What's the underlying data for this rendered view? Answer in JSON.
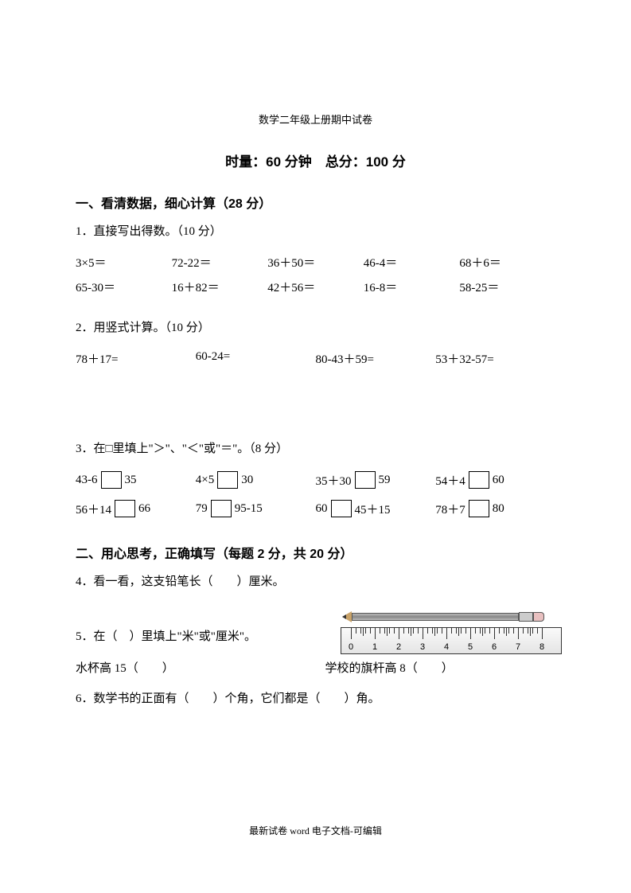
{
  "header": "数学二年级上册期中试卷",
  "timeScore": "时量：60 分钟　总分：100 分",
  "section1": {
    "title": "一、看清数据，细心计算（28 分）",
    "q1": {
      "label": "1．直接写出得数。（10 分）",
      "row1": [
        "3×5＝",
        "72-22＝",
        "36＋50＝",
        "46-4＝",
        "68＋6＝"
      ],
      "row2": [
        "65-30＝",
        "16＋82＝",
        "42＋56＝",
        "16-8＝",
        "58-25＝"
      ]
    },
    "q2": {
      "label": "2．用竖式计算。（10 分）",
      "row1": [
        "78＋17=",
        "60-24=",
        "80-43＋59=",
        "53＋32-57="
      ]
    },
    "q3": {
      "label": "3．在□里填上\"＞\"、\"＜\"或\"＝\"。（8 分）",
      "row1": [
        {
          "a": "43-6",
          "b": "35"
        },
        {
          "a": "4×5",
          "b": "30"
        },
        {
          "a": "35＋30",
          "b": "59"
        },
        {
          "a": "54＋4",
          "b": "60"
        }
      ],
      "row2": [
        {
          "a": "56＋14",
          "b": "66"
        },
        {
          "a": "79",
          "b": "95-15"
        },
        {
          "a": "60",
          "b": "45＋15"
        },
        {
          "a": "78＋7",
          "b": "80"
        }
      ]
    }
  },
  "section2": {
    "title": "二、用心思考，正确填写（每题 2 分，共 20 分）",
    "q4": "4．看一看，这支铅笔长（　　）厘米。",
    "q5": "5．在（　）里填上\"米\"或\"厘米\"。",
    "q5a": "水杯高 15（　　）",
    "q5b": "学校的旗杆高 8（　　）",
    "q6": "6．数学书的正面有（　　）个角，它们都是（　　）角。"
  },
  "ruler": {
    "marks": [
      "0",
      "1",
      "2",
      "3",
      "4",
      "5",
      "6",
      "7",
      "8"
    ],
    "unitPx": 30,
    "offsetPx": 12
  },
  "footer": "最新试卷 word 电子文档-可编辑"
}
